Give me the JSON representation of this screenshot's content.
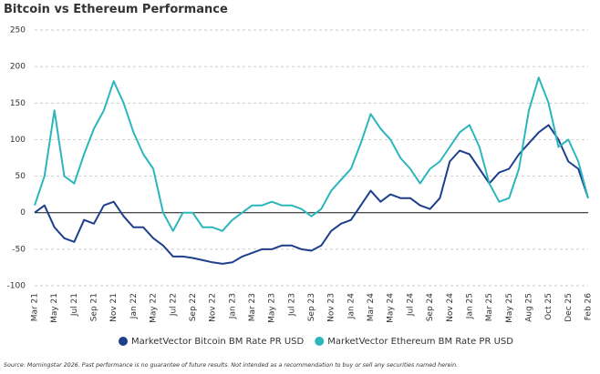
{
  "chart_data": {
    "type": "line",
    "title": "Bitcoin vs Ethereum Performance",
    "categories": [
      "Mar 21",
      null,
      "May 21",
      null,
      "Jul 21",
      null,
      "Sep 21",
      null,
      "Nov 21",
      null,
      "Jan 22",
      null,
      "May 22",
      null,
      "Jul 22",
      null,
      "Sep 22",
      null,
      "Nov 22",
      null,
      "Jan 23",
      null,
      "Mar 23",
      null,
      "May 23",
      null,
      "Jul 23",
      null,
      "Sep 23",
      null,
      "Nov 23",
      null,
      "Jan 24",
      null,
      "Mar 24",
      null,
      "May 24",
      null,
      "Jul 24",
      null,
      "Sep 24",
      null,
      "Nov 24",
      null,
      "Jan 25",
      null,
      "Mar 25",
      null,
      "May 25",
      null,
      "Aug 25",
      null,
      "Oct 25",
      null,
      "Dec 25",
      null,
      "Feb 26"
    ],
    "series": [
      {
        "name": "MarketVector Bitcoin BM Rate PR USD",
        "color": "#1d3f8c",
        "values": [
          0,
          10,
          -20,
          -35,
          -40,
          -10,
          -15,
          10,
          15,
          -5,
          -20,
          -20,
          -35,
          -45,
          -60,
          -60,
          -62,
          -65,
          -68,
          -70,
          -68,
          -60,
          -55,
          -50,
          -50,
          -45,
          -45,
          -50,
          -52,
          -45,
          -25,
          -15,
          -10,
          10,
          30,
          15,
          25,
          20,
          20,
          10,
          5,
          20,
          70,
          85,
          80,
          60,
          40,
          55,
          60,
          80,
          95,
          110,
          120,
          100,
          70,
          60,
          20
        ]
      },
      {
        "name": "MarketVector Ethereum BM Rate PR USD",
        "color": "#2bb6be",
        "values": [
          10,
          50,
          140,
          50,
          40,
          80,
          115,
          140,
          180,
          150,
          110,
          80,
          60,
          0,
          -25,
          0,
          0,
          -20,
          -20,
          -25,
          -10,
          0,
          10,
          10,
          15,
          10,
          10,
          5,
          -5,
          5,
          30,
          45,
          60,
          95,
          135,
          115,
          100,
          75,
          60,
          40,
          60,
          70,
          90,
          110,
          120,
          90,
          40,
          15,
          20,
          60,
          140,
          185,
          150,
          90,
          100,
          70,
          20
        ]
      }
    ],
    "ylim": [
      -100,
      250
    ],
    "yticks": [
      -100,
      -50,
      0,
      50,
      100,
      150,
      200,
      250
    ],
    "grid": true,
    "legend": "bottom",
    "source": "Source: Morningstar 2026. Past performance is no guarantee of future results. Not intended as a recommendation to buy or sell any securities named herein."
  }
}
